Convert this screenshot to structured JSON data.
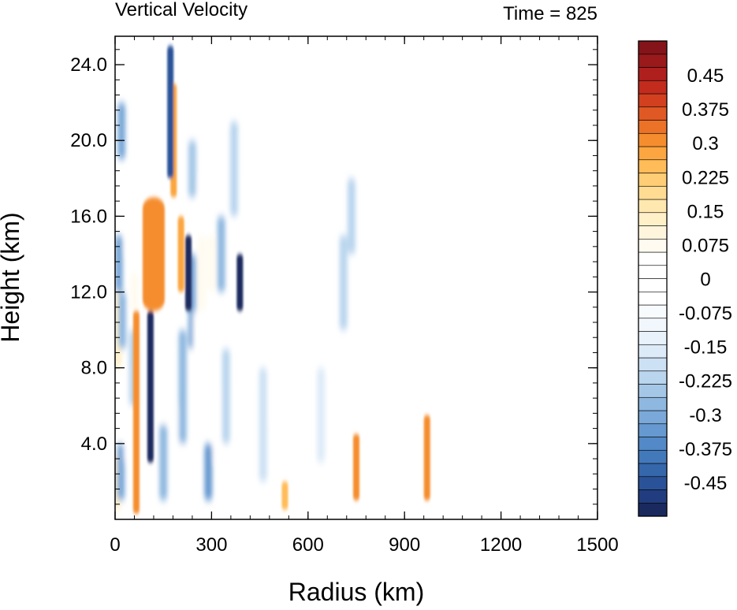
{
  "chart_data": {
    "type": "heatmap",
    "title_left": "Vertical Velocity",
    "title_right": "Time = 825",
    "xlabel": "Radius (km)",
    "ylabel": "Height (km)",
    "xlim": [
      0,
      1500
    ],
    "ylim": [
      0,
      25.5
    ],
    "xticks": [
      {
        "value": 0,
        "label": "0"
      },
      {
        "value": 300,
        "label": "300"
      },
      {
        "value": 600,
        "label": "600"
      },
      {
        "value": 900,
        "label": "900"
      },
      {
        "value": 1200,
        "label": "1200"
      },
      {
        "value": 1500,
        "label": "1500"
      }
    ],
    "yticks": [
      {
        "value": 4,
        "label": "4.0"
      },
      {
        "value": 8,
        "label": "8.0"
      },
      {
        "value": 12,
        "label": "12.0"
      },
      {
        "value": 16,
        "label": "16.0"
      },
      {
        "value": 20,
        "label": "20.0"
      },
      {
        "value": 24,
        "label": "24.0"
      }
    ],
    "colorbar": {
      "levels": 36,
      "min": -0.525,
      "max": 0.525,
      "step": 0.0375,
      "labels": [
        "0.45",
        "0.375",
        "0.3",
        "0.225",
        "0.15",
        "0.075",
        "0",
        "-0.075",
        "-0.15",
        "-0.225",
        "-0.3",
        "-0.375",
        "-0.45"
      ],
      "label_values": [
        0.45,
        0.375,
        0.3,
        0.225,
        0.15,
        0.075,
        0,
        -0.075,
        -0.15,
        -0.225,
        -0.3,
        -0.375,
        -0.45
      ],
      "colors": [
        "#1a2a5e",
        "#213d80",
        "#2a5298",
        "#3567ab",
        "#4279bb",
        "#5289c6",
        "#6699d0",
        "#7aa8d8",
        "#8fb8e0",
        "#a5c7e7",
        "#bad5ee",
        "#cde1f4",
        "#ddebf8",
        "#e9f2fb",
        "#f2f7fd",
        "#f8fbfe",
        "#ffffff",
        "#ffffff",
        "#ffffff",
        "#ffffff",
        "#fffbf0",
        "#fff5dd",
        "#fff0c8",
        "#ffe8b0",
        "#ffdc92",
        "#ffcd75",
        "#ffbc58",
        "#fba640",
        "#f58d2f",
        "#ec7227",
        "#e05824",
        "#d2401f",
        "#c32b1d",
        "#af1f1d",
        "#9a191b",
        "#85141a"
      ]
    },
    "features": [
      {
        "kind": "updraft",
        "r": 66,
        "z": [
          0.3,
          11
        ],
        "w": 0.55
      },
      {
        "kind": "updraft",
        "r": 120,
        "z": [
          11,
          17
        ],
        "w": 0.55
      },
      {
        "kind": "downdraft",
        "r": 110,
        "z": [
          3,
          11
        ],
        "w": -0.5
      },
      {
        "kind": "updraft",
        "r": 182,
        "z": [
          17,
          23
        ],
        "w": 0.5
      },
      {
        "kind": "downdraft",
        "r": 172,
        "z": [
          18,
          25
        ],
        "w": -0.45
      },
      {
        "kind": "updraft",
        "r": 205,
        "z": [
          12,
          16
        ],
        "w": 0.5
      },
      {
        "kind": "downdraft",
        "r": 228,
        "z": [
          11,
          15
        ],
        "w": -0.5
      },
      {
        "kind": "downdraft",
        "r": 388,
        "z": [
          11,
          14
        ],
        "w": -0.5
      },
      {
        "kind": "updraft",
        "r": 750,
        "z": [
          1,
          4.5
        ],
        "w": 0.55
      },
      {
        "kind": "updraft",
        "r": 970,
        "z": [
          1,
          5.5
        ],
        "w": 0.55
      },
      {
        "kind": "updraft",
        "r": 528,
        "z": [
          0.5,
          2
        ],
        "w": 0.45
      }
    ]
  }
}
